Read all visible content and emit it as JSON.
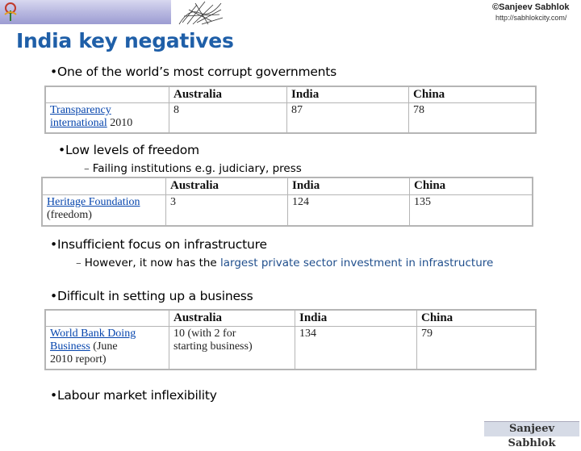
{
  "header": {
    "copyright": "©Sanjeev Sabhlok",
    "url": "http://sabhlokcity.com/"
  },
  "title": "India key negatives",
  "sections": [
    {
      "bullet": "One of the world’s most corrupt governments",
      "table": {
        "headers": [
          "Australia",
          "India",
          "China"
        ],
        "source_link": "Transparency international",
        "source_suffix": "2010",
        "values": [
          "8",
          "87",
          "78"
        ]
      }
    },
    {
      "bullet": "Low levels of freedom",
      "sub": "Failing institutions e.g. judiciary, press",
      "table": {
        "headers": [
          "Australia",
          "India",
          "China"
        ],
        "source_link": "Heritage Foundation",
        "source_suffix": "(freedom)",
        "values": [
          "3",
          "124",
          "135"
        ]
      }
    },
    {
      "bullet": "Insufficient focus on infrastructure",
      "sub_prefix": "However, it now has the ",
      "sub_highlight": "largest private sector investment in infrastructure"
    },
    {
      "bullet": "Difficult in setting up a business",
      "table": {
        "headers": [
          "Australia",
          "India",
          "China"
        ],
        "source_link_line1": "World Bank Doing",
        "source_link_line2": "Business",
        "source_suffix_line2": "(June",
        "source_suffix_line3": "2010 report)",
        "value_au_line1": "10 (with 2 for",
        "value_au_line2": "starting business)",
        "value_in": "134",
        "value_cn": "79"
      }
    },
    {
      "bullet": "Labour market inflexibility"
    }
  ],
  "footer": {
    "logo_text": "Sanjeev Sabhlok"
  },
  "bullet_char": "•",
  "dash_char": "–"
}
